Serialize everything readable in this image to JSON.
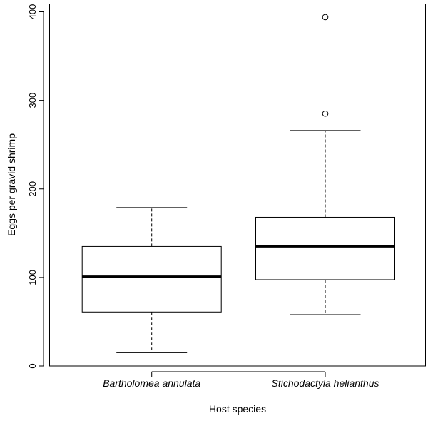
{
  "chart_data": {
    "type": "boxplot",
    "title": "",
    "xlabel": "Host species",
    "ylabel": "Eggs per gravid shrimp",
    "ylim": [
      0,
      400
    ],
    "yticks": [
      "0",
      "100",
      "200",
      "300",
      "400"
    ],
    "categories": [
      "Bartholomea annulata",
      "Stichodactyla helianthus"
    ],
    "boxes": [
      {
        "name": "Bartholomea annulata",
        "whisker_low": 15,
        "q1": 61,
        "median": 101,
        "q3": 135,
        "whisker_high": 179,
        "outliers": []
      },
      {
        "name": "Stichodactyla helianthus",
        "whisker_low": 58,
        "q1": 97.5,
        "median": 135,
        "q3": 168,
        "whisker_high": 266,
        "outliers": [
          285,
          394
        ]
      }
    ],
    "grid": false
  }
}
